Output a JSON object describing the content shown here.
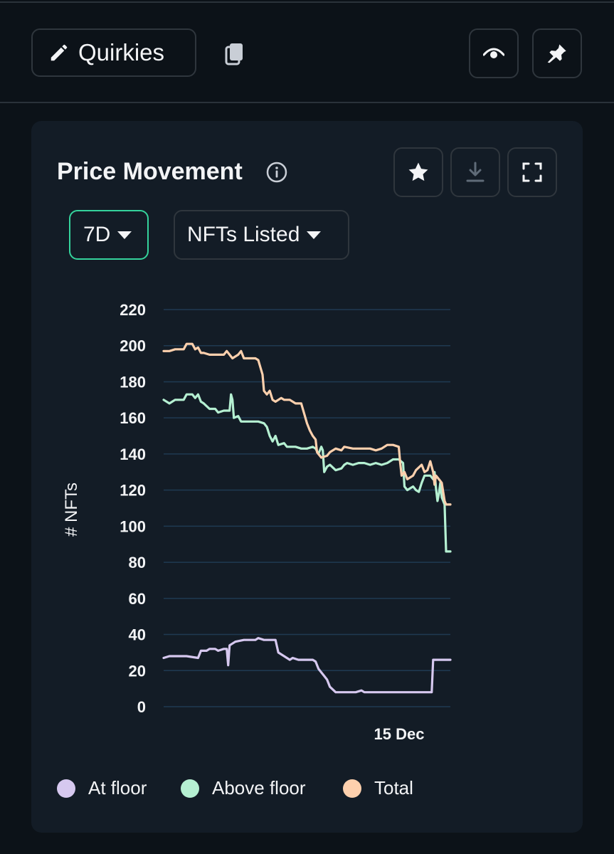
{
  "header": {
    "collection_name": "Quirkies",
    "icons": [
      "pencil-icon",
      "copy-icon",
      "eye-icon",
      "pin-icon"
    ]
  },
  "panel": {
    "title": "Price Movement",
    "tools": [
      "star-icon",
      "download-icon",
      "fullscreen-icon"
    ],
    "period": "7D",
    "metric": "NFTs Listed"
  },
  "colors": {
    "background": "#0c1218",
    "card": "#131c26",
    "accent": "#35d39c",
    "at_floor": "#d6c8ef",
    "above_floor": "#b5f0d2",
    "total": "#fdd0ad",
    "grid": "#1f3a52"
  },
  "chart_data": {
    "type": "line",
    "title": "",
    "xlabel": "",
    "ylabel": "# NFTs",
    "ylim": [
      0,
      220
    ],
    "y_ticks": [
      "0",
      "20",
      "40",
      "60",
      "80",
      "100",
      "120",
      "140",
      "160",
      "180",
      "200",
      "220"
    ],
    "x_tick_labels": [
      "15 Dec"
    ],
    "grid": true,
    "legend_position": "bottom",
    "series": [
      {
        "name": "At floor",
        "points": [
          [
            0,
            27
          ],
          [
            0.02,
            28
          ],
          [
            0.08,
            28
          ],
          [
            0.12,
            27
          ],
          [
            0.13,
            31
          ],
          [
            0.15,
            31
          ],
          [
            0.16,
            32
          ],
          [
            0.18,
            32
          ],
          [
            0.19,
            31
          ],
          [
            0.21,
            32
          ],
          [
            0.22,
            32
          ],
          [
            0.225,
            23
          ],
          [
            0.23,
            34
          ],
          [
            0.25,
            36
          ],
          [
            0.28,
            37
          ],
          [
            0.3,
            37
          ],
          [
            0.32,
            37
          ],
          [
            0.33,
            38
          ],
          [
            0.35,
            37
          ],
          [
            0.38,
            37
          ],
          [
            0.39,
            37
          ],
          [
            0.4,
            30
          ],
          [
            0.42,
            28
          ],
          [
            0.44,
            26
          ],
          [
            0.45,
            27
          ],
          [
            0.47,
            26
          ],
          [
            0.5,
            26
          ],
          [
            0.51,
            26
          ],
          [
            0.52,
            26
          ],
          [
            0.53,
            25
          ],
          [
            0.54,
            21
          ],
          [
            0.56,
            17
          ],
          [
            0.57,
            15
          ],
          [
            0.58,
            11
          ],
          [
            0.6,
            8
          ],
          [
            0.62,
            8
          ],
          [
            0.67,
            8
          ],
          [
            0.69,
            9
          ],
          [
            0.7,
            8
          ],
          [
            0.72,
            8
          ],
          [
            0.8,
            8
          ],
          [
            0.9,
            8
          ],
          [
            0.935,
            8
          ],
          [
            0.94,
            26
          ],
          [
            1.0,
            26
          ]
        ]
      },
      {
        "name": "Above floor",
        "points": [
          [
            0,
            170
          ],
          [
            0.02,
            168
          ],
          [
            0.04,
            170
          ],
          [
            0.07,
            170
          ],
          [
            0.08,
            173
          ],
          [
            0.1,
            173
          ],
          [
            0.11,
            171
          ],
          [
            0.12,
            173
          ],
          [
            0.13,
            169
          ],
          [
            0.14,
            168
          ],
          [
            0.16,
            165
          ],
          [
            0.18,
            165
          ],
          [
            0.19,
            163
          ],
          [
            0.21,
            164
          ],
          [
            0.23,
            164
          ],
          [
            0.235,
            173
          ],
          [
            0.24,
            170
          ],
          [
            0.245,
            160
          ],
          [
            0.26,
            161
          ],
          [
            0.27,
            158
          ],
          [
            0.3,
            158
          ],
          [
            0.33,
            158
          ],
          [
            0.35,
            157
          ],
          [
            0.36,
            155
          ],
          [
            0.37,
            150
          ],
          [
            0.38,
            147
          ],
          [
            0.39,
            150
          ],
          [
            0.4,
            145
          ],
          [
            0.42,
            146
          ],
          [
            0.43,
            144
          ],
          [
            0.46,
            144
          ],
          [
            0.48,
            143
          ],
          [
            0.5,
            143
          ],
          [
            0.52,
            144
          ],
          [
            0.53,
            143
          ],
          [
            0.54,
            140
          ],
          [
            0.55,
            144
          ],
          [
            0.555,
            142
          ],
          [
            0.56,
            130
          ],
          [
            0.57,
            133
          ],
          [
            0.58,
            134
          ],
          [
            0.6,
            131
          ],
          [
            0.62,
            132
          ],
          [
            0.63,
            134
          ],
          [
            0.64,
            135
          ],
          [
            0.66,
            134
          ],
          [
            0.68,
            135
          ],
          [
            0.7,
            135
          ],
          [
            0.72,
            134
          ],
          [
            0.74,
            135
          ],
          [
            0.76,
            134
          ],
          [
            0.78,
            135
          ],
          [
            0.8,
            137
          ],
          [
            0.82,
            137
          ],
          [
            0.835,
            135
          ],
          [
            0.84,
            122
          ],
          [
            0.85,
            120
          ],
          [
            0.87,
            122
          ],
          [
            0.88,
            120
          ],
          [
            0.89,
            119
          ],
          [
            0.9,
            124
          ],
          [
            0.91,
            128
          ],
          [
            0.93,
            128
          ],
          [
            0.94,
            126
          ],
          [
            0.945,
            130
          ],
          [
            0.95,
            121
          ],
          [
            0.955,
            114
          ],
          [
            0.96,
            118
          ],
          [
            0.965,
            124
          ],
          [
            0.97,
            116
          ],
          [
            0.98,
            112
          ],
          [
            0.985,
            86
          ],
          [
            1.0,
            86
          ]
        ]
      },
      {
        "name": "Total",
        "points": [
          [
            0,
            197
          ],
          [
            0.02,
            197
          ],
          [
            0.04,
            198
          ],
          [
            0.07,
            198
          ],
          [
            0.08,
            201
          ],
          [
            0.1,
            201
          ],
          [
            0.11,
            198
          ],
          [
            0.12,
            199
          ],
          [
            0.13,
            196
          ],
          [
            0.14,
            196
          ],
          [
            0.16,
            195
          ],
          [
            0.19,
            195
          ],
          [
            0.21,
            195
          ],
          [
            0.22,
            197
          ],
          [
            0.23,
            195
          ],
          [
            0.24,
            193
          ],
          [
            0.25,
            194
          ],
          [
            0.26,
            195
          ],
          [
            0.27,
            197
          ],
          [
            0.28,
            193
          ],
          [
            0.3,
            193
          ],
          [
            0.32,
            193
          ],
          [
            0.33,
            192
          ],
          [
            0.345,
            184
          ],
          [
            0.35,
            175
          ],
          [
            0.36,
            173
          ],
          [
            0.37,
            175
          ],
          [
            0.38,
            170
          ],
          [
            0.39,
            169
          ],
          [
            0.41,
            171
          ],
          [
            0.42,
            170
          ],
          [
            0.44,
            170
          ],
          [
            0.46,
            168
          ],
          [
            0.48,
            168
          ],
          [
            0.5,
            157
          ],
          [
            0.51,
            153
          ],
          [
            0.52,
            150
          ],
          [
            0.53,
            148
          ],
          [
            0.535,
            141
          ],
          [
            0.55,
            138
          ],
          [
            0.57,
            139
          ],
          [
            0.58,
            141
          ],
          [
            0.6,
            143
          ],
          [
            0.62,
            142
          ],
          [
            0.63,
            144
          ],
          [
            0.66,
            143
          ],
          [
            0.68,
            143
          ],
          [
            0.7,
            143
          ],
          [
            0.72,
            143
          ],
          [
            0.74,
            142
          ],
          [
            0.76,
            143
          ],
          [
            0.78,
            145
          ],
          [
            0.8,
            145
          ],
          [
            0.82,
            144
          ],
          [
            0.825,
            135
          ],
          [
            0.83,
            128
          ],
          [
            0.84,
            130
          ],
          [
            0.85,
            126
          ],
          [
            0.87,
            128
          ],
          [
            0.88,
            131
          ],
          [
            0.9,
            134
          ],
          [
            0.91,
            130
          ],
          [
            0.92,
            131
          ],
          [
            0.93,
            136
          ],
          [
            0.94,
            130
          ],
          [
            0.945,
            123
          ],
          [
            0.95,
            128
          ],
          [
            0.96,
            126
          ],
          [
            0.97,
            124
          ],
          [
            0.98,
            114
          ],
          [
            0.985,
            112
          ],
          [
            1.0,
            112
          ]
        ]
      }
    ]
  }
}
